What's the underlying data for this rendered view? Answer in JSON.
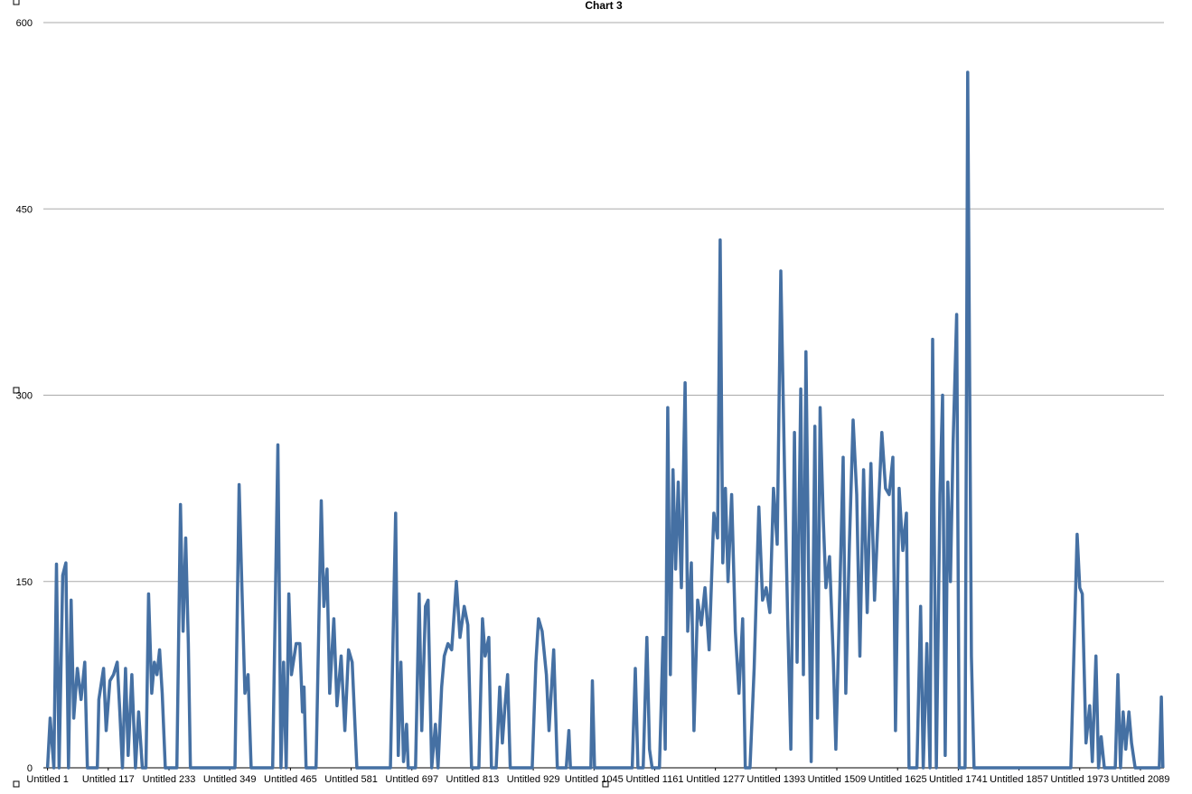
{
  "chart_data": {
    "type": "line",
    "title": "Chart 3",
    "x": [
      1,
      6,
      13,
      18,
      23,
      30,
      36,
      41,
      46,
      51,
      58,
      65,
      72,
      77,
      96,
      99,
      108,
      113,
      120,
      127,
      134,
      139,
      144,
      150,
      155,
      162,
      169,
      175,
      182,
      189,
      194,
      200,
      205,
      210,
      215,
      220,
      226,
      248,
      255,
      260,
      265,
      270,
      274,
      359,
      367,
      372,
      378,
      384,
      390,
      431,
      441,
      447,
      452,
      457,
      462,
      467,
      476,
      483,
      488,
      491,
      495,
      514,
      524,
      529,
      535,
      540,
      548,
      554,
      562,
      569,
      576,
      583,
      592,
      656,
      666,
      671,
      676,
      681,
      687,
      690,
      704,
      711,
      716,
      723,
      728,
      735,
      742,
      747,
      754,
      759,
      766,
      773,
      782,
      789,
      797,
      804,
      811,
      825,
      832,
      837,
      844,
      849,
      858,
      865,
      870,
      875,
      880,
      885,
      927,
      934,
      939,
      946,
      954,
      959,
      968,
      975,
      992,
      997,
      1000,
      1039,
      1042,
      1046,
      1118,
      1124,
      1129,
      1139,
      1146,
      1151,
      1156,
      1170,
      1177,
      1181,
      1186,
      1191,
      1196,
      1201,
      1206,
      1212,
      1219,
      1224,
      1231,
      1236,
      1243,
      1250,
      1257,
      1265,
      1274,
      1281,
      1286,
      1291,
      1296,
      1301,
      1308,
      1315,
      1322,
      1329,
      1334,
      1343,
      1351,
      1360,
      1367,
      1374,
      1381,
      1388,
      1395,
      1402,
      1409,
      1415,
      1421,
      1428,
      1433,
      1440,
      1445,
      1450,
      1455,
      1460,
      1467,
      1472,
      1477,
      1483,
      1488,
      1495,
      1502,
      1507,
      1514,
      1521,
      1526,
      1533,
      1540,
      1547,
      1553,
      1560,
      1567,
      1574,
      1581,
      1588,
      1595,
      1602,
      1609,
      1616,
      1621,
      1628,
      1635,
      1642,
      1647,
      1662,
      1669,
      1674,
      1681,
      1687,
      1692,
      1699,
      1706,
      1711,
      1716,
      1721,
      1726,
      1731,
      1738,
      1743,
      1754,
      1759,
      1766,
      1771,
      1956,
      1968,
      1973,
      1978,
      1985,
      1992,
      1997,
      2004,
      2009,
      2014,
      2020,
      2041,
      2046,
      2051,
      2056,
      2061,
      2067,
      2072,
      2079,
      2125,
      2129,
      2132
    ],
    "series": [
      {
        "color": "#4570a3",
        "values": [
          0,
          40,
          0,
          164,
          0,
          155,
          165,
          0,
          135,
          40,
          80,
          55,
          85,
          0,
          0,
          55,
          80,
          30,
          70,
          75,
          85,
          45,
          0,
          80,
          10,
          75,
          0,
          45,
          0,
          0,
          140,
          60,
          85,
          75,
          95,
          60,
          0,
          0,
          212,
          110,
          185,
          100,
          0,
          0,
          228,
          150,
          60,
          75,
          0,
          0,
          260,
          0,
          85,
          0,
          140,
          75,
          100,
          100,
          45,
          65,
          0,
          0,
          215,
          130,
          160,
          60,
          120,
          50,
          90,
          30,
          95,
          85,
          0,
          0,
          205,
          10,
          85,
          5,
          35,
          0,
          0,
          140,
          30,
          130,
          135,
          0,
          35,
          0,
          65,
          90,
          100,
          95,
          150,
          105,
          130,
          115,
          0,
          0,
          120,
          90,
          105,
          0,
          0,
          65,
          20,
          50,
          75,
          0,
          0,
          85,
          120,
          110,
          75,
          30,
          95,
          0,
          0,
          30,
          0,
          0,
          70,
          0,
          0,
          80,
          0,
          0,
          105,
          15,
          0,
          0,
          105,
          15,
          290,
          75,
          240,
          160,
          230,
          145,
          310,
          110,
          165,
          30,
          135,
          115,
          145,
          95,
          205,
          185,
          425,
          165,
          225,
          150,
          220,
          110,
          60,
          120,
          0,
          0,
          80,
          210,
          135,
          145,
          125,
          225,
          180,
          400,
          240,
          120,
          15,
          270,
          85,
          305,
          75,
          335,
          160,
          5,
          275,
          40,
          290,
          200,
          145,
          170,
          90,
          15,
          130,
          250,
          60,
          180,
          280,
          220,
          90,
          240,
          125,
          245,
          135,
          205,
          270,
          225,
          220,
          250,
          30,
          225,
          175,
          205,
          0,
          0,
          130,
          0,
          100,
          0,
          345,
          0,
          220,
          300,
          10,
          230,
          150,
          260,
          365,
          0,
          0,
          560,
          90,
          0,
          0,
          188,
          145,
          140,
          20,
          50,
          5,
          90,
          0,
          25,
          0,
          0,
          75,
          0,
          45,
          15,
          45,
          20,
          0,
          0,
          57,
          0
        ]
      }
    ],
    "xlim": [
      -7,
      2134
    ],
    "xticks": [
      {
        "value": 1,
        "label": "Untitled 1"
      },
      {
        "value": 117,
        "label": "Untitled 117"
      },
      {
        "value": 233,
        "label": "Untitled 233"
      },
      {
        "value": 349,
        "label": "Untitled 349"
      },
      {
        "value": 465,
        "label": "Untitled 465"
      },
      {
        "value": 581,
        "label": "Untitled 581"
      },
      {
        "value": 697,
        "label": "Untitled 697"
      },
      {
        "value": 813,
        "label": "Untitled 813"
      },
      {
        "value": 929,
        "label": "Untitled 929"
      },
      {
        "value": 1045,
        "label": "Untitled 1045"
      },
      {
        "value": 1161,
        "label": "Untitled 1161"
      },
      {
        "value": 1277,
        "label": "Untitled 1277"
      },
      {
        "value": 1393,
        "label": "Untitled 1393"
      },
      {
        "value": 1509,
        "label": "Untitled 1509"
      },
      {
        "value": 1625,
        "label": "Untitled 1625"
      },
      {
        "value": 1741,
        "label": "Untitled 1741"
      },
      {
        "value": 1857,
        "label": "Untitled 1857"
      },
      {
        "value": 1973,
        "label": "Untitled 1973"
      },
      {
        "value": 2089,
        "label": "Untitled 2089"
      }
    ],
    "ylim": [
      0,
      600
    ],
    "yticks": [
      0,
      150,
      300,
      450,
      600
    ],
    "grid": true
  }
}
